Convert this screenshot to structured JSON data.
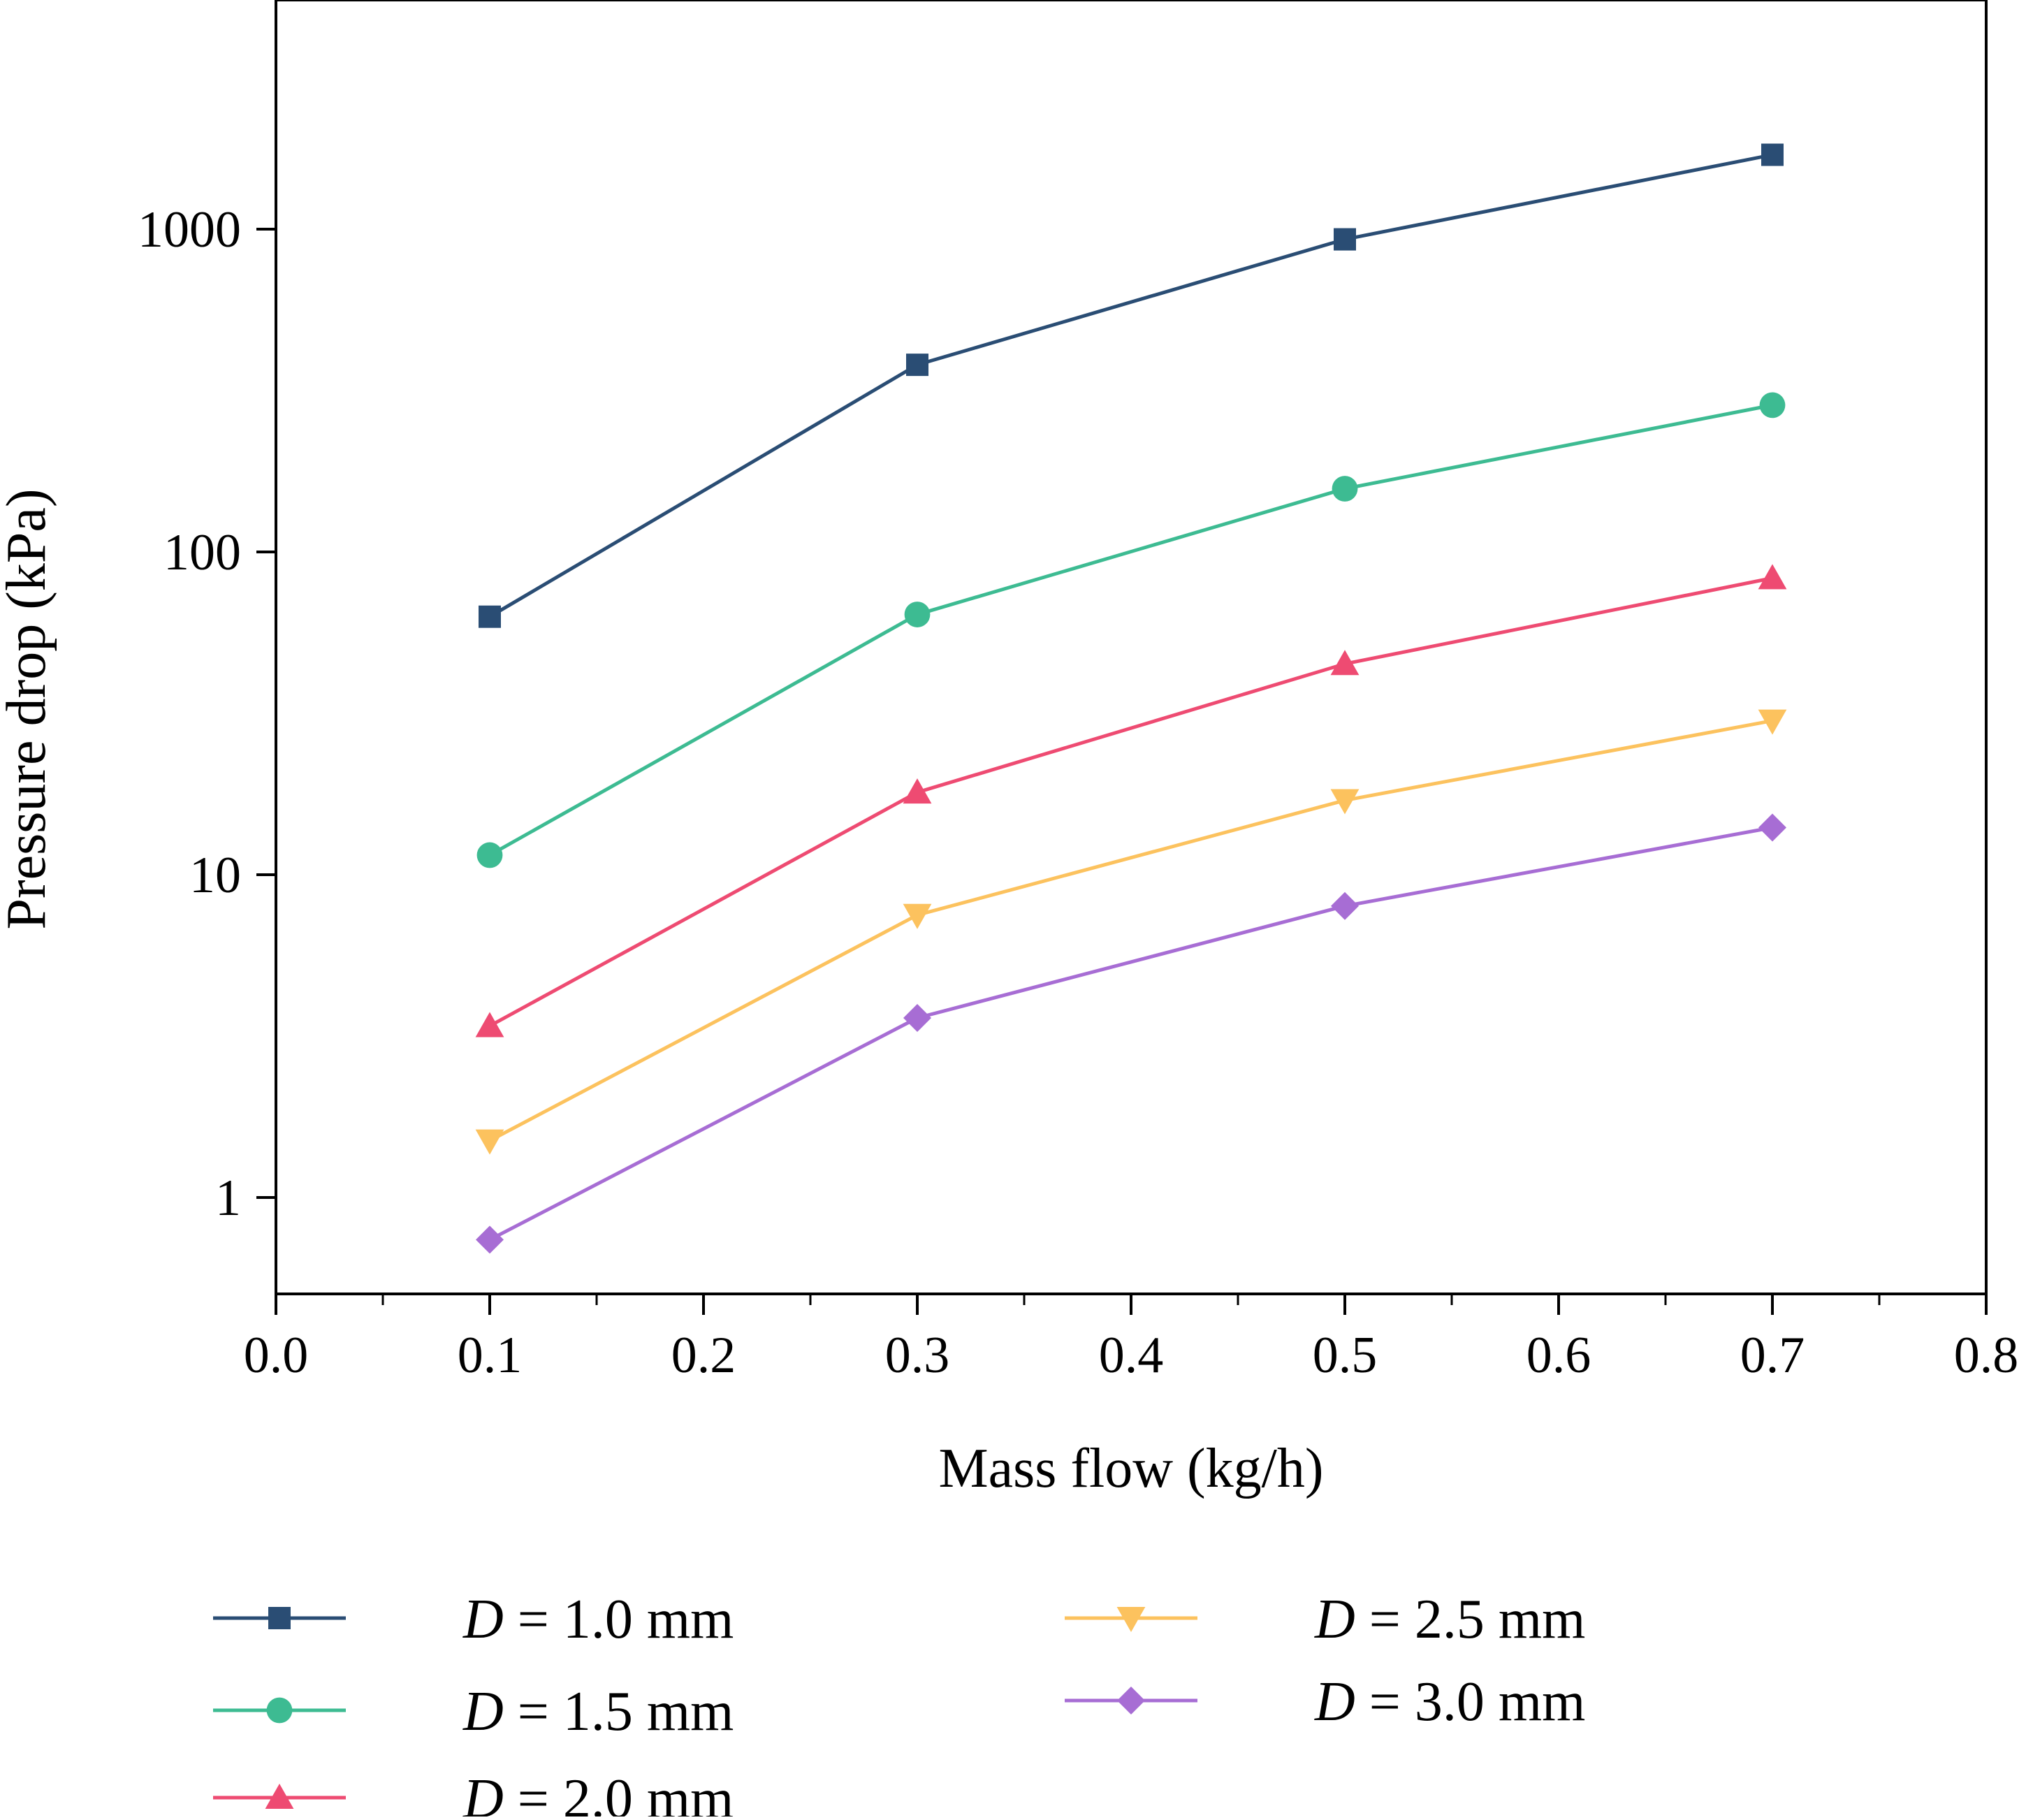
{
  "chart_data": {
    "type": "line",
    "title": "",
    "xlabel": "Mass flow (kg/h)",
    "ylabel": "Pressure drop (kPa)",
    "xlim": [
      0.0,
      0.8
    ],
    "ylim": [
      0.5,
      5000
    ],
    "y_scale": "log",
    "grid": false,
    "x_ticks": [
      0.0,
      0.1,
      0.2,
      0.3,
      0.4,
      0.5,
      0.6,
      0.7,
      0.8
    ],
    "x_tick_labels": [
      "0.0",
      "0.1",
      "0.2",
      "0.3",
      "0.4",
      "0.5",
      "0.6",
      "0.7",
      "0.8"
    ],
    "x_minor_ticks": [
      0.05,
      0.15,
      0.25,
      0.35,
      0.45,
      0.55,
      0.65,
      0.75
    ],
    "y_ticks": [
      1,
      10,
      100,
      1000
    ],
    "y_tick_labels": [
      "1",
      "10",
      "100",
      "1000"
    ],
    "x": [
      0.1,
      0.3,
      0.5,
      0.7
    ],
    "legend_position": "bottom",
    "series": [
      {
        "name": "D = 1.0 mm",
        "label_var": "D",
        "label_rest": " = 1.0 mm",
        "color": "#2a4d74",
        "marker": "square",
        "values": [
          63,
          380,
          930,
          1700
        ]
      },
      {
        "name": "D = 1.5 mm",
        "label_var": "D",
        "label_rest": " = 1.5 mm",
        "color": "#3dbb92",
        "marker": "circle",
        "values": [
          11.5,
          64,
          157,
          285
        ]
      },
      {
        "name": "D = 2.0 mm",
        "label_var": "D",
        "label_rest": " = 2.0 mm",
        "color": "#ee4b72",
        "marker": "triangle-up",
        "values": [
          3.4,
          18,
          45,
          83
        ]
      },
      {
        "name": "D = 2.5 mm",
        "label_var": "D",
        "label_rest": " = 2.5 mm",
        "color": "#fcc25e",
        "marker": "triangle-down",
        "values": [
          1.5,
          7.5,
          17,
          30
        ]
      },
      {
        "name": "D = 3.0 mm",
        "label_var": "D",
        "label_rest": " = 3.0 mm",
        "color": "#a76dd4",
        "marker": "diamond",
        "values": [
          0.74,
          3.6,
          8,
          14
        ]
      }
    ]
  }
}
